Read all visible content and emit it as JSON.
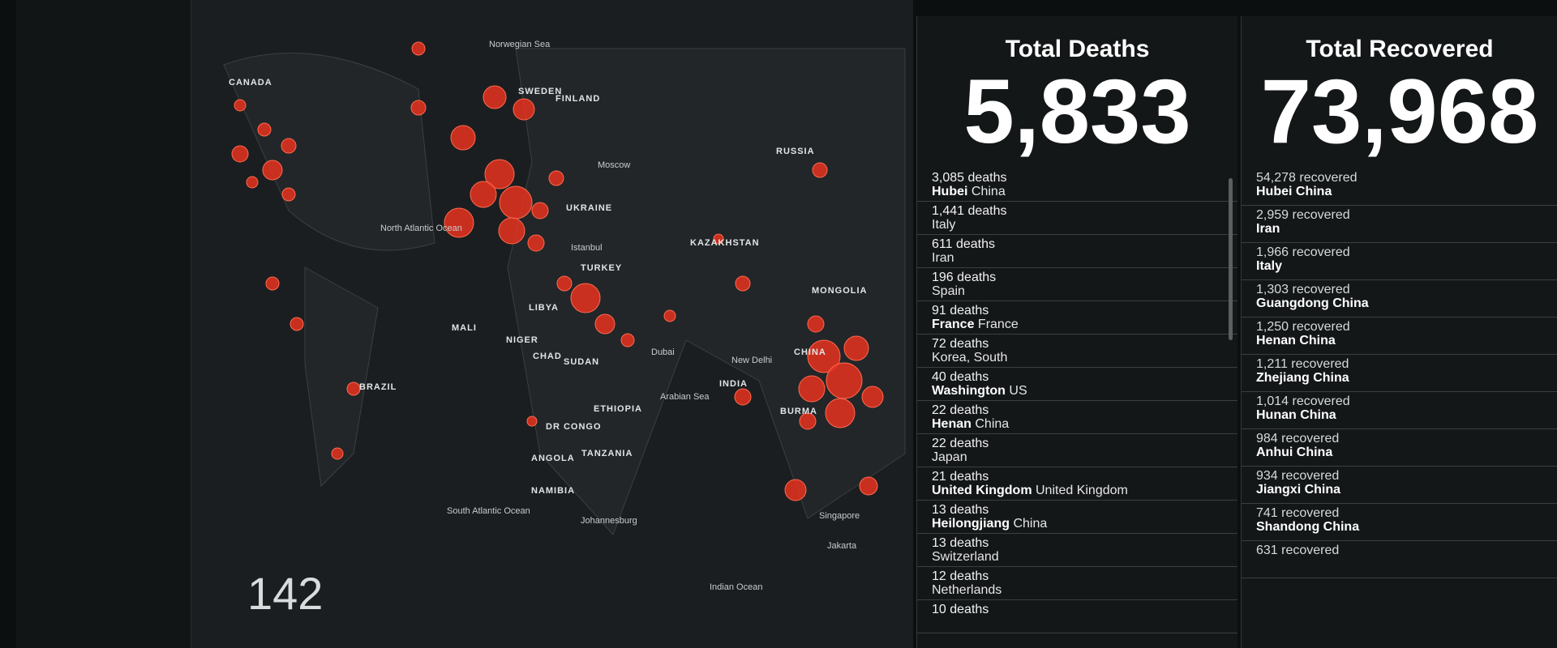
{
  "map": {
    "labels": [
      "Norwegian Sea",
      "SWEDEN",
      "FINLAND",
      "RUSSIA",
      "Moscow",
      "UKRAINE",
      "Istanbul",
      "TURKEY",
      "KAZAKHSTAN",
      "MONGOLIA",
      "LIBYA",
      "MALI",
      "NIGER",
      "CHAD",
      "SUDAN",
      "Dubai",
      "New Delhi",
      "INDIA",
      "Arabian Sea",
      "BURMA",
      "ETHIOPIA",
      "DR CONGO",
      "TANZANIA",
      "ANGOLA",
      "NAMIBIA",
      "Johannesburg",
      "Singapore",
      "Jakarta",
      "Indian Ocean",
      "North Atlantic Ocean",
      "South Atlantic Ocean",
      "CANADA",
      "BRAZIL",
      "CHINA"
    ],
    "counter": "142"
  },
  "deaths": {
    "title": "Total Deaths",
    "total": "5,833",
    "items": [
      {
        "count": "3,085 deaths",
        "place": "Hubei",
        "region": "China"
      },
      {
        "count": "1,441 deaths",
        "region": "Italy"
      },
      {
        "count": "611 deaths",
        "region": "Iran"
      },
      {
        "count": "196 deaths",
        "region": "Spain"
      },
      {
        "count": "91 deaths",
        "place": "France",
        "region": "France"
      },
      {
        "count": "72 deaths",
        "region": "Korea, South"
      },
      {
        "count": "40 deaths",
        "place": "Washington",
        "region": "US"
      },
      {
        "count": "22 deaths",
        "place": "Henan",
        "region": "China"
      },
      {
        "count": "22 deaths",
        "region": "Japan"
      },
      {
        "count": "21 deaths",
        "place": "United Kingdom",
        "region": "United Kingdom"
      },
      {
        "count": "13 deaths",
        "place": "Heilongjiang",
        "region": "China"
      },
      {
        "count": "13 deaths",
        "region": "Switzerland"
      },
      {
        "count": "12 deaths",
        "region": "Netherlands"
      },
      {
        "count": "10 deaths"
      }
    ]
  },
  "recovered": {
    "title": "Total Recovered",
    "total": "73,968",
    "items": [
      {
        "count": "54,278 recovered",
        "place": "Hubei China"
      },
      {
        "count": "2,959 recovered",
        "place": "Iran"
      },
      {
        "count": "1,966 recovered",
        "place": "Italy"
      },
      {
        "count": "1,303 recovered",
        "place": "Guangdong China"
      },
      {
        "count": "1,250 recovered",
        "place": "Henan China"
      },
      {
        "count": "1,211 recovered",
        "place": "Zhejiang China"
      },
      {
        "count": "1,014 recovered",
        "place": "Hunan China"
      },
      {
        "count": "984 recovered",
        "place": "Anhui China"
      },
      {
        "count": "934 recovered",
        "place": "Jiangxi China"
      },
      {
        "count": "741 recovered",
        "place": "Shandong China"
      },
      {
        "count": "631 recovered"
      }
    ]
  }
}
